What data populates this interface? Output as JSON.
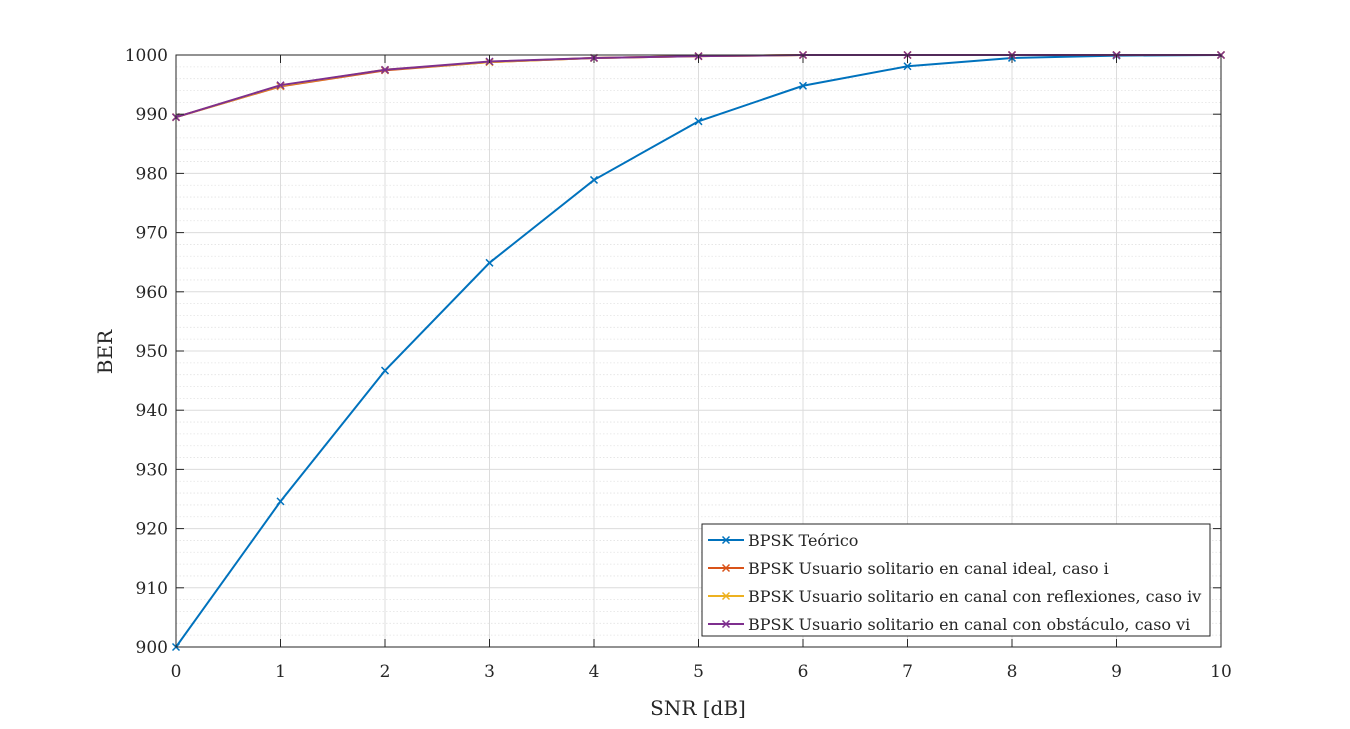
{
  "chart_data": {
    "type": "line",
    "title": "",
    "xlabel": "SNR [dB]",
    "ylabel": "BER",
    "xlim": [
      0,
      10
    ],
    "ylim": [
      900,
      1000
    ],
    "xticks": [
      "0",
      "1",
      "2",
      "3",
      "4",
      "5",
      "6",
      "7",
      "8",
      "9",
      "10"
    ],
    "yticks": [
      "900",
      "910",
      "920",
      "930",
      "940",
      "950",
      "960",
      "970",
      "980",
      "990",
      "1000"
    ],
    "grid": true,
    "minor_grid_y": true,
    "legend_position": "bottom-right",
    "x": [
      0,
      1,
      2,
      3,
      4,
      5,
      6,
      7,
      8,
      9,
      10
    ],
    "series": [
      {
        "name": "BPSK Teórico",
        "color": "#0072BD",
        "marker": "x",
        "values": [
          900.0,
          924.6,
          946.7,
          964.9,
          978.9,
          988.8,
          994.8,
          998.1,
          999.5,
          999.9,
          1000.0
        ]
      },
      {
        "name": "BPSK Usuario solitario en canal ideal, caso i",
        "color": "#D95319",
        "marker": "x",
        "values": [
          989.5,
          994.7,
          997.4,
          998.8,
          999.5,
          999.8,
          1000.0,
          1000.0,
          1000.0,
          1000.0,
          1000.0
        ]
      },
      {
        "name": "BPSK Usuario solitario en canal con reflexiones, caso iv",
        "color": "#EDB120",
        "marker": "x",
        "values": [
          989.5,
          994.8,
          997.5,
          998.8,
          999.5,
          999.8,
          1000.0,
          1000.0,
          1000.0,
          1000.0,
          1000.0
        ]
      },
      {
        "name": "BPSK Usuario solitario en canal con obstáculo, caso vi",
        "color": "#7E2F8E",
        "marker": "x",
        "values": [
          989.5,
          994.9,
          997.5,
          998.9,
          999.5,
          999.8,
          1000.0,
          1000.0,
          1000.0,
          1000.0,
          1000.0
        ]
      }
    ]
  }
}
